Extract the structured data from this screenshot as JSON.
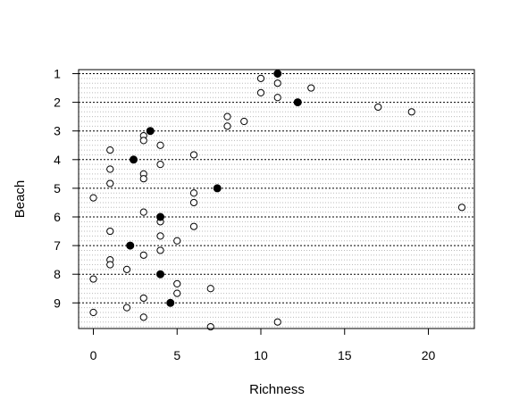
{
  "chart_data": {
    "type": "scatter",
    "title": "",
    "xlabel": "Richness",
    "ylabel": "Beach",
    "xlim": [
      -0.88,
      22.88
    ],
    "ylim": [
      1,
      45
    ],
    "xticks": [
      0,
      5,
      10,
      15,
      20
    ],
    "beach_ticks": [
      "1",
      "2",
      "3",
      "4",
      "5",
      "6",
      "7",
      "8",
      "9"
    ],
    "grid": "dotted horizontal line at every observation row; dashed line at each beach mean",
    "legend": "none",
    "colors": {
      "observation": "#ffffff",
      "beach_mean": "#000000",
      "grid": "#bbbbbb"
    },
    "series": [
      {
        "marker": "open-circle",
        "points": [
          {
            "beach": 1,
            "row": 2,
            "richness": 10
          },
          {
            "beach": 1,
            "row": 3,
            "richness": 11
          },
          {
            "beach": 1,
            "row": 4,
            "richness": 13
          },
          {
            "beach": 1,
            "row": 5,
            "richness": 10
          },
          {
            "beach": 1,
            "row": 6,
            "richness": 11
          },
          {
            "beach": 2,
            "row": 8,
            "richness": 17
          },
          {
            "beach": 2,
            "row": 9,
            "richness": 19
          },
          {
            "beach": 2,
            "row": 10,
            "richness": 8
          },
          {
            "beach": 2,
            "row": 11,
            "richness": 9
          },
          {
            "beach": 2,
            "row": 12,
            "richness": 8
          },
          {
            "beach": 3,
            "row": 14,
            "richness": 3
          },
          {
            "beach": 3,
            "row": 15,
            "richness": 3
          },
          {
            "beach": 3,
            "row": 16,
            "richness": 4
          },
          {
            "beach": 3,
            "row": 17,
            "richness": 1
          },
          {
            "beach": 3,
            "row": 18,
            "richness": 6
          },
          {
            "beach": 4,
            "row": 20,
            "richness": 4
          },
          {
            "beach": 4,
            "row": 21,
            "richness": 1
          },
          {
            "beach": 4,
            "row": 22,
            "richness": 3
          },
          {
            "beach": 4,
            "row": 23,
            "richness": 3
          },
          {
            "beach": 4,
            "row": 24,
            "richness": 1
          },
          {
            "beach": 5,
            "row": 26,
            "richness": 6
          },
          {
            "beach": 5,
            "row": 27,
            "richness": 0
          },
          {
            "beach": 5,
            "row": 28,
            "richness": 6
          },
          {
            "beach": 5,
            "row": 29,
            "richness": 22
          },
          {
            "beach": 5,
            "row": 30,
            "richness": 3
          },
          {
            "beach": 6,
            "row": 32,
            "richness": 4
          },
          {
            "beach": 6,
            "row": 33,
            "richness": 6
          },
          {
            "beach": 6,
            "row": 34,
            "richness": 1
          },
          {
            "beach": 6,
            "row": 35,
            "richness": 4
          },
          {
            "beach": 6,
            "row": 36,
            "richness": 5
          },
          {
            "beach": 7,
            "row": 38,
            "richness": 4
          },
          {
            "beach": 7,
            "row": 39,
            "richness": 3
          },
          {
            "beach": 7,
            "row": 40,
            "richness": 1
          },
          {
            "beach": 7,
            "row": 41,
            "richness": 1
          },
          {
            "beach": 7,
            "row": 42,
            "richness": 2
          },
          {
            "beach": 8,
            "row": 44,
            "richness": 0
          },
          {
            "beach": 8,
            "row": 45,
            "richness": 5
          },
          {
            "beach": 8,
            "row": 46,
            "richness": 7
          },
          {
            "beach": 8,
            "row": 47,
            "richness": 5
          },
          {
            "beach": 8,
            "row": 48,
            "richness": 3
          },
          {
            "beach": 9,
            "row": 50,
            "richness": 2
          },
          {
            "beach": 9,
            "row": 51,
            "richness": 0
          },
          {
            "beach": 9,
            "row": 52,
            "richness": 3
          },
          {
            "beach": 9,
            "row": 53,
            "richness": 11
          },
          {
            "beach": 9,
            "row": 54,
            "richness": 7
          }
        ]
      },
      {
        "marker": "filled-circle",
        "points": [
          {
            "beach": 1,
            "row": 1,
            "richness": 11.0
          },
          {
            "beach": 2,
            "row": 7,
            "richness": 12.2
          },
          {
            "beach": 3,
            "row": 13,
            "richness": 3.4
          },
          {
            "beach": 4,
            "row": 19,
            "richness": 2.4
          },
          {
            "beach": 5,
            "row": 25,
            "richness": 7.4
          },
          {
            "beach": 6,
            "row": 31,
            "richness": 4.0
          },
          {
            "beach": 7,
            "row": 37,
            "richness": 2.2
          },
          {
            "beach": 8,
            "row": 43,
            "richness": 4.0
          },
          {
            "beach": 9,
            "row": 49,
            "richness": 4.6
          }
        ]
      }
    ]
  }
}
